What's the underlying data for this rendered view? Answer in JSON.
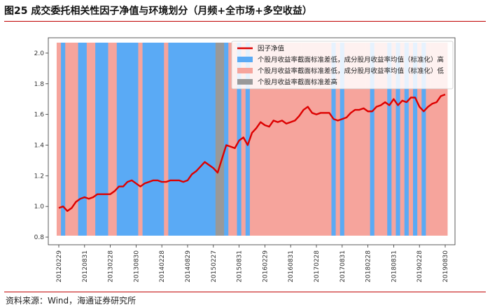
{
  "figure": {
    "title": "图25 成交委托相关性因子净值与环境划分（月频+全市场+多空收益）",
    "source": "资料来源：Wind，海通证券研究所"
  },
  "colors": {
    "line": "#dd0000",
    "high": "#5aaaf5",
    "low": "#f6a49c",
    "std_high": "#999999",
    "rule": "#c00000"
  },
  "chart_data": {
    "type": "line",
    "title": "",
    "xlabel": "",
    "ylabel": "",
    "ylim": [
      0.75,
      2.1
    ],
    "yticks": [
      0.8,
      1.0,
      1.2,
      1.4,
      1.6,
      1.8,
      2.0
    ],
    "ytick_labels": [
      "0.8",
      "1.0",
      "1.2",
      "1.4",
      "1.6",
      "1.8",
      "2.0"
    ],
    "xtick_labels": [
      "20120229",
      "20120831",
      "20130228",
      "20130830",
      "20140228",
      "20140829",
      "20150227",
      "20150831",
      "20160229",
      "20160831",
      "20170228",
      "20170831",
      "20180228",
      "20180831",
      "20190228",
      "20190830"
    ],
    "legend": {
      "placement": "top-right",
      "entries": [
        {
          "key": "line",
          "label": "因子净值"
        },
        {
          "key": "high",
          "label": "个股月收益率截面标准差低，成分股月收益率均值（标准化）高"
        },
        {
          "key": "low",
          "label": "个股月收益率截面标准差低，成分股月收益率均值（标准化）低"
        },
        {
          "key": "std_high",
          "label": "个股月收益率截面标准差高"
        }
      ]
    },
    "series": [
      {
        "name": "因子净值",
        "values": [
          0.99,
          1.0,
          0.97,
          0.99,
          1.03,
          1.05,
          1.06,
          1.05,
          1.06,
          1.08,
          1.08,
          1.08,
          1.08,
          1.1,
          1.13,
          1.13,
          1.16,
          1.17,
          1.15,
          1.13,
          1.15,
          1.16,
          1.17,
          1.17,
          1.16,
          1.16,
          1.17,
          1.17,
          1.17,
          1.16,
          1.17,
          1.21,
          1.23,
          1.26,
          1.29,
          1.27,
          1.25,
          1.22,
          1.31,
          1.4,
          1.39,
          1.38,
          1.43,
          1.45,
          1.4,
          1.48,
          1.51,
          1.55,
          1.53,
          1.52,
          1.56,
          1.55,
          1.56,
          1.54,
          1.55,
          1.56,
          1.59,
          1.63,
          1.65,
          1.61,
          1.6,
          1.61,
          1.61,
          1.61,
          1.57,
          1.56,
          1.57,
          1.58,
          1.61,
          1.63,
          1.63,
          1.64,
          1.62,
          1.62,
          1.65,
          1.66,
          1.68,
          1.66,
          1.7,
          1.66,
          1.69,
          1.68,
          1.71,
          1.71,
          1.65,
          1.62,
          1.65,
          1.67,
          1.68,
          1.72,
          1.73
        ]
      }
    ],
    "regimes": [
      "low",
      "high",
      "low",
      "low",
      "low",
      "high",
      "high",
      "low",
      "low",
      "high",
      "high",
      "high",
      "low",
      "low",
      "high",
      "high",
      "high",
      "high",
      "high",
      "low",
      "high",
      "high",
      "high",
      "high",
      "high",
      "low",
      "high",
      "high",
      "high",
      "high",
      "high",
      "high",
      "high",
      "high",
      "high",
      "high",
      "high",
      "std_high",
      "std_high",
      "high",
      "low",
      "low",
      "high",
      "low",
      "high",
      "low",
      "low",
      "low",
      "low",
      "low",
      "low",
      "low",
      "low",
      "low",
      "low",
      "low",
      "low",
      "low",
      "low",
      "low",
      "low",
      "low",
      "low",
      "low",
      "high",
      "low",
      "high",
      "low",
      "low",
      "low",
      "low",
      "low",
      "low",
      "high",
      "low",
      "low",
      "low",
      "high",
      "low",
      "high",
      "low",
      "high",
      "low",
      "high",
      "low",
      "high",
      "low",
      "low",
      "low",
      "low",
      "low"
    ]
  }
}
